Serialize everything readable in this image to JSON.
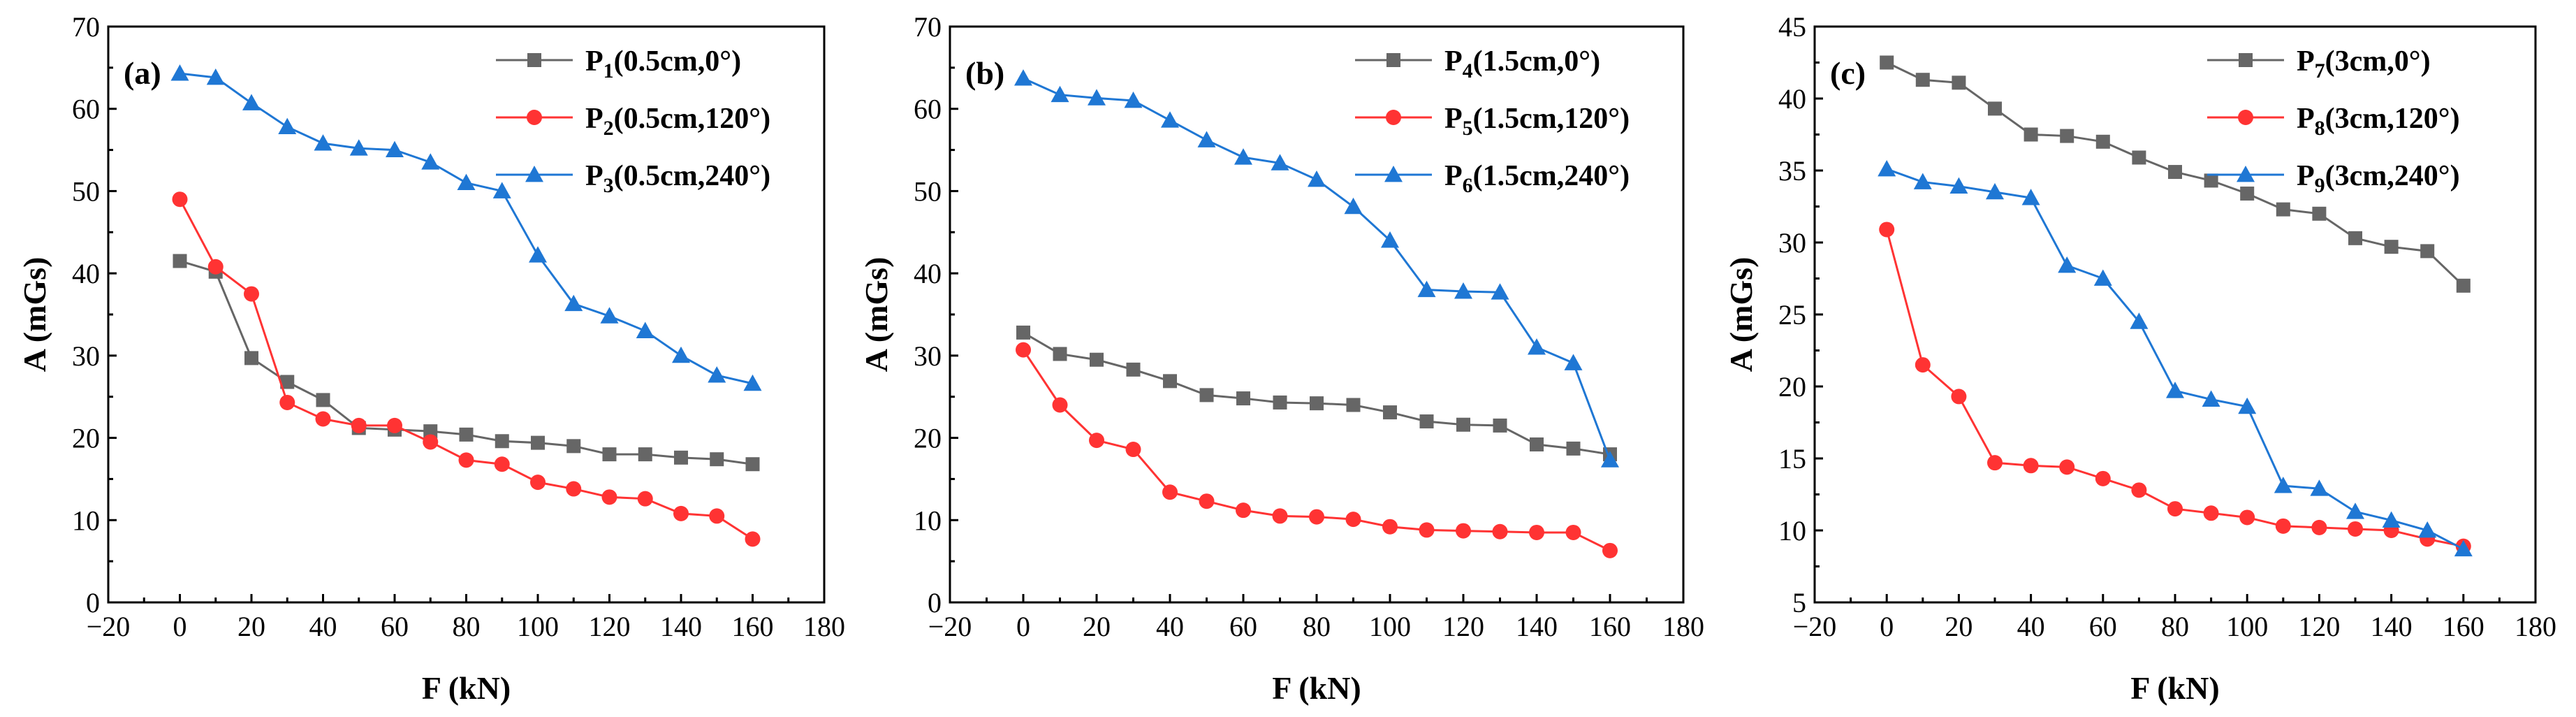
{
  "chart_data": [
    {
      "type": "line",
      "panel_label": "(a)",
      "xlabel": "F (kN)",
      "ylabel": "A (mGs)",
      "xlim": [
        -20,
        180
      ],
      "ylim": [
        0,
        70
      ],
      "xticks": [
        -20,
        0,
        20,
        40,
        60,
        80,
        100,
        120,
        140,
        160,
        180
      ],
      "yticks": [
        0,
        10,
        20,
        30,
        40,
        50,
        60,
        70
      ],
      "xtick_labels": [
        "−20",
        "0",
        "20",
        "40",
        "60",
        "80",
        "100",
        "120",
        "140",
        "160",
        "180"
      ],
      "ytick_labels": [
        "0",
        "10",
        "20",
        "30",
        "40",
        "50",
        "60",
        "70"
      ],
      "x": [
        0,
        10,
        20,
        30,
        40,
        50,
        60,
        70,
        80,
        90,
        100,
        110,
        120,
        130,
        140,
        150,
        160
      ],
      "legend_position": "top-right",
      "series": [
        {
          "name": "P1(0.5cm,0°)",
          "label_main": "P",
          "label_sub": "1",
          "label_rest": "(0.5cm,0°)",
          "color": "#666666",
          "marker": "square",
          "values": [
            41.5,
            40.2,
            29.7,
            26.8,
            24.6,
            21.2,
            21.0,
            20.8,
            20.4,
            19.6,
            19.4,
            19.0,
            18.0,
            18.0,
            17.6,
            17.4,
            16.8
          ]
        },
        {
          "name": "P2(0.5cm,120°)",
          "label_main": "P",
          "label_sub": "2",
          "label_rest": "(0.5cm,120°)",
          "color": "#ff3333",
          "marker": "circle",
          "values": [
            49.0,
            40.8,
            37.5,
            24.3,
            22.3,
            21.5,
            21.5,
            19.5,
            17.3,
            16.8,
            14.6,
            13.8,
            12.8,
            12.6,
            10.8,
            10.5,
            7.7
          ]
        },
        {
          "name": "P3(0.5cm,240°)",
          "label_main": "P",
          "label_sub": "3",
          "label_rest": "(0.5cm,240°)",
          "color": "#1f77d4",
          "marker": "triangle",
          "values": [
            64.3,
            63.8,
            60.7,
            57.8,
            55.8,
            55.2,
            55.0,
            53.5,
            51.0,
            50.0,
            42.2,
            36.3,
            34.8,
            33.0,
            30.0,
            27.6,
            26.6
          ]
        }
      ]
    },
    {
      "type": "line",
      "panel_label": "(b)",
      "xlabel": "F (kN)",
      "ylabel": "A (mGs)",
      "xlim": [
        -20,
        180
      ],
      "ylim": [
        0,
        70
      ],
      "xticks": [
        -20,
        0,
        20,
        40,
        60,
        80,
        100,
        120,
        140,
        160,
        180
      ],
      "yticks": [
        0,
        10,
        20,
        30,
        40,
        50,
        60,
        70
      ],
      "xtick_labels": [
        "−20",
        "0",
        "20",
        "40",
        "60",
        "80",
        "100",
        "120",
        "140",
        "160",
        "180"
      ],
      "ytick_labels": [
        "0",
        "10",
        "20",
        "30",
        "40",
        "50",
        "60",
        "70"
      ],
      "x": [
        0,
        10,
        20,
        30,
        40,
        50,
        60,
        70,
        80,
        90,
        100,
        110,
        120,
        130,
        140,
        150,
        160
      ],
      "legend_position": "top-right",
      "series": [
        {
          "name": "P4(1.5cm,0°)",
          "label_main": "P",
          "label_sub": "4",
          "label_rest": "(1.5cm,0°)",
          "color": "#666666",
          "marker": "square",
          "values": [
            32.8,
            30.2,
            29.5,
            28.3,
            26.9,
            25.2,
            24.8,
            24.3,
            24.2,
            24.0,
            23.1,
            22.0,
            21.6,
            21.5,
            19.2,
            18.7,
            18.0
          ]
        },
        {
          "name": "P5(1.5cm,120°)",
          "label_main": "P",
          "label_sub": "5",
          "label_rest": "(1.5cm,120°)",
          "color": "#ff3333",
          "marker": "circle",
          "values": [
            30.7,
            24.0,
            19.7,
            18.6,
            13.4,
            12.3,
            11.2,
            10.5,
            10.4,
            10.1,
            9.2,
            8.8,
            8.7,
            8.6,
            8.5,
            8.5,
            6.3
          ]
        },
        {
          "name": "P6(1.5cm,240°)",
          "label_main": "P",
          "label_sub": "6",
          "label_rest": "(1.5cm,240°)",
          "color": "#1f77d4",
          "marker": "triangle",
          "values": [
            63.7,
            61.7,
            61.3,
            61.0,
            58.6,
            56.2,
            54.1,
            53.4,
            51.4,
            48.1,
            44.0,
            38.0,
            37.8,
            37.7,
            31.0,
            29.1,
            17.3
          ]
        }
      ]
    },
    {
      "type": "line",
      "panel_label": "(c)",
      "xlabel": "F (kN)",
      "ylabel": "A (mGs)",
      "xlim": [
        -20,
        180
      ],
      "ylim": [
        5,
        45
      ],
      "xticks": [
        -20,
        0,
        20,
        40,
        60,
        80,
        100,
        120,
        140,
        160,
        180
      ],
      "yticks": [
        5,
        10,
        15,
        20,
        25,
        30,
        35,
        40,
        45
      ],
      "xtick_labels": [
        "−20",
        "0",
        "20",
        "40",
        "60",
        "80",
        "100",
        "120",
        "140",
        "160",
        "180"
      ],
      "ytick_labels": [
        "5",
        "10",
        "15",
        "20",
        "25",
        "30",
        "35",
        "40",
        "45"
      ],
      "x": [
        0,
        10,
        20,
        30,
        40,
        50,
        60,
        70,
        80,
        90,
        100,
        110,
        120,
        130,
        140,
        150,
        160
      ],
      "legend_position": "top-right",
      "series": [
        {
          "name": "P7(3cm,0°)",
          "label_main": "P",
          "label_sub": "7",
          "label_rest": "(3cm,0°)",
          "color": "#666666",
          "marker": "square",
          "values": [
            42.5,
            41.3,
            41.1,
            39.3,
            37.5,
            37.4,
            37.0,
            35.9,
            34.9,
            34.3,
            33.4,
            32.3,
            32.0,
            30.3,
            29.7,
            29.4,
            27.0
          ]
        },
        {
          "name": "P8(3cm,120°)",
          "label_main": "P",
          "label_sub": "8",
          "label_rest": "(3cm,120°)",
          "color": "#ff3333",
          "marker": "circle",
          "values": [
            30.9,
            21.5,
            19.3,
            14.7,
            14.5,
            14.4,
            13.6,
            12.8,
            11.5,
            11.2,
            10.9,
            10.3,
            10.2,
            10.1,
            10.0,
            9.4,
            8.9
          ]
        },
        {
          "name": "P9(3cm,240°)",
          "label_main": "P",
          "label_sub": "9",
          "label_rest": "(3cm,240°)",
          "color": "#1f77d4",
          "marker": "triangle",
          "values": [
            35.1,
            34.2,
            33.9,
            33.5,
            33.1,
            28.4,
            27.5,
            24.5,
            19.7,
            19.1,
            18.6,
            13.1,
            12.9,
            11.3,
            10.7,
            10.0,
            8.7
          ]
        }
      ]
    }
  ]
}
